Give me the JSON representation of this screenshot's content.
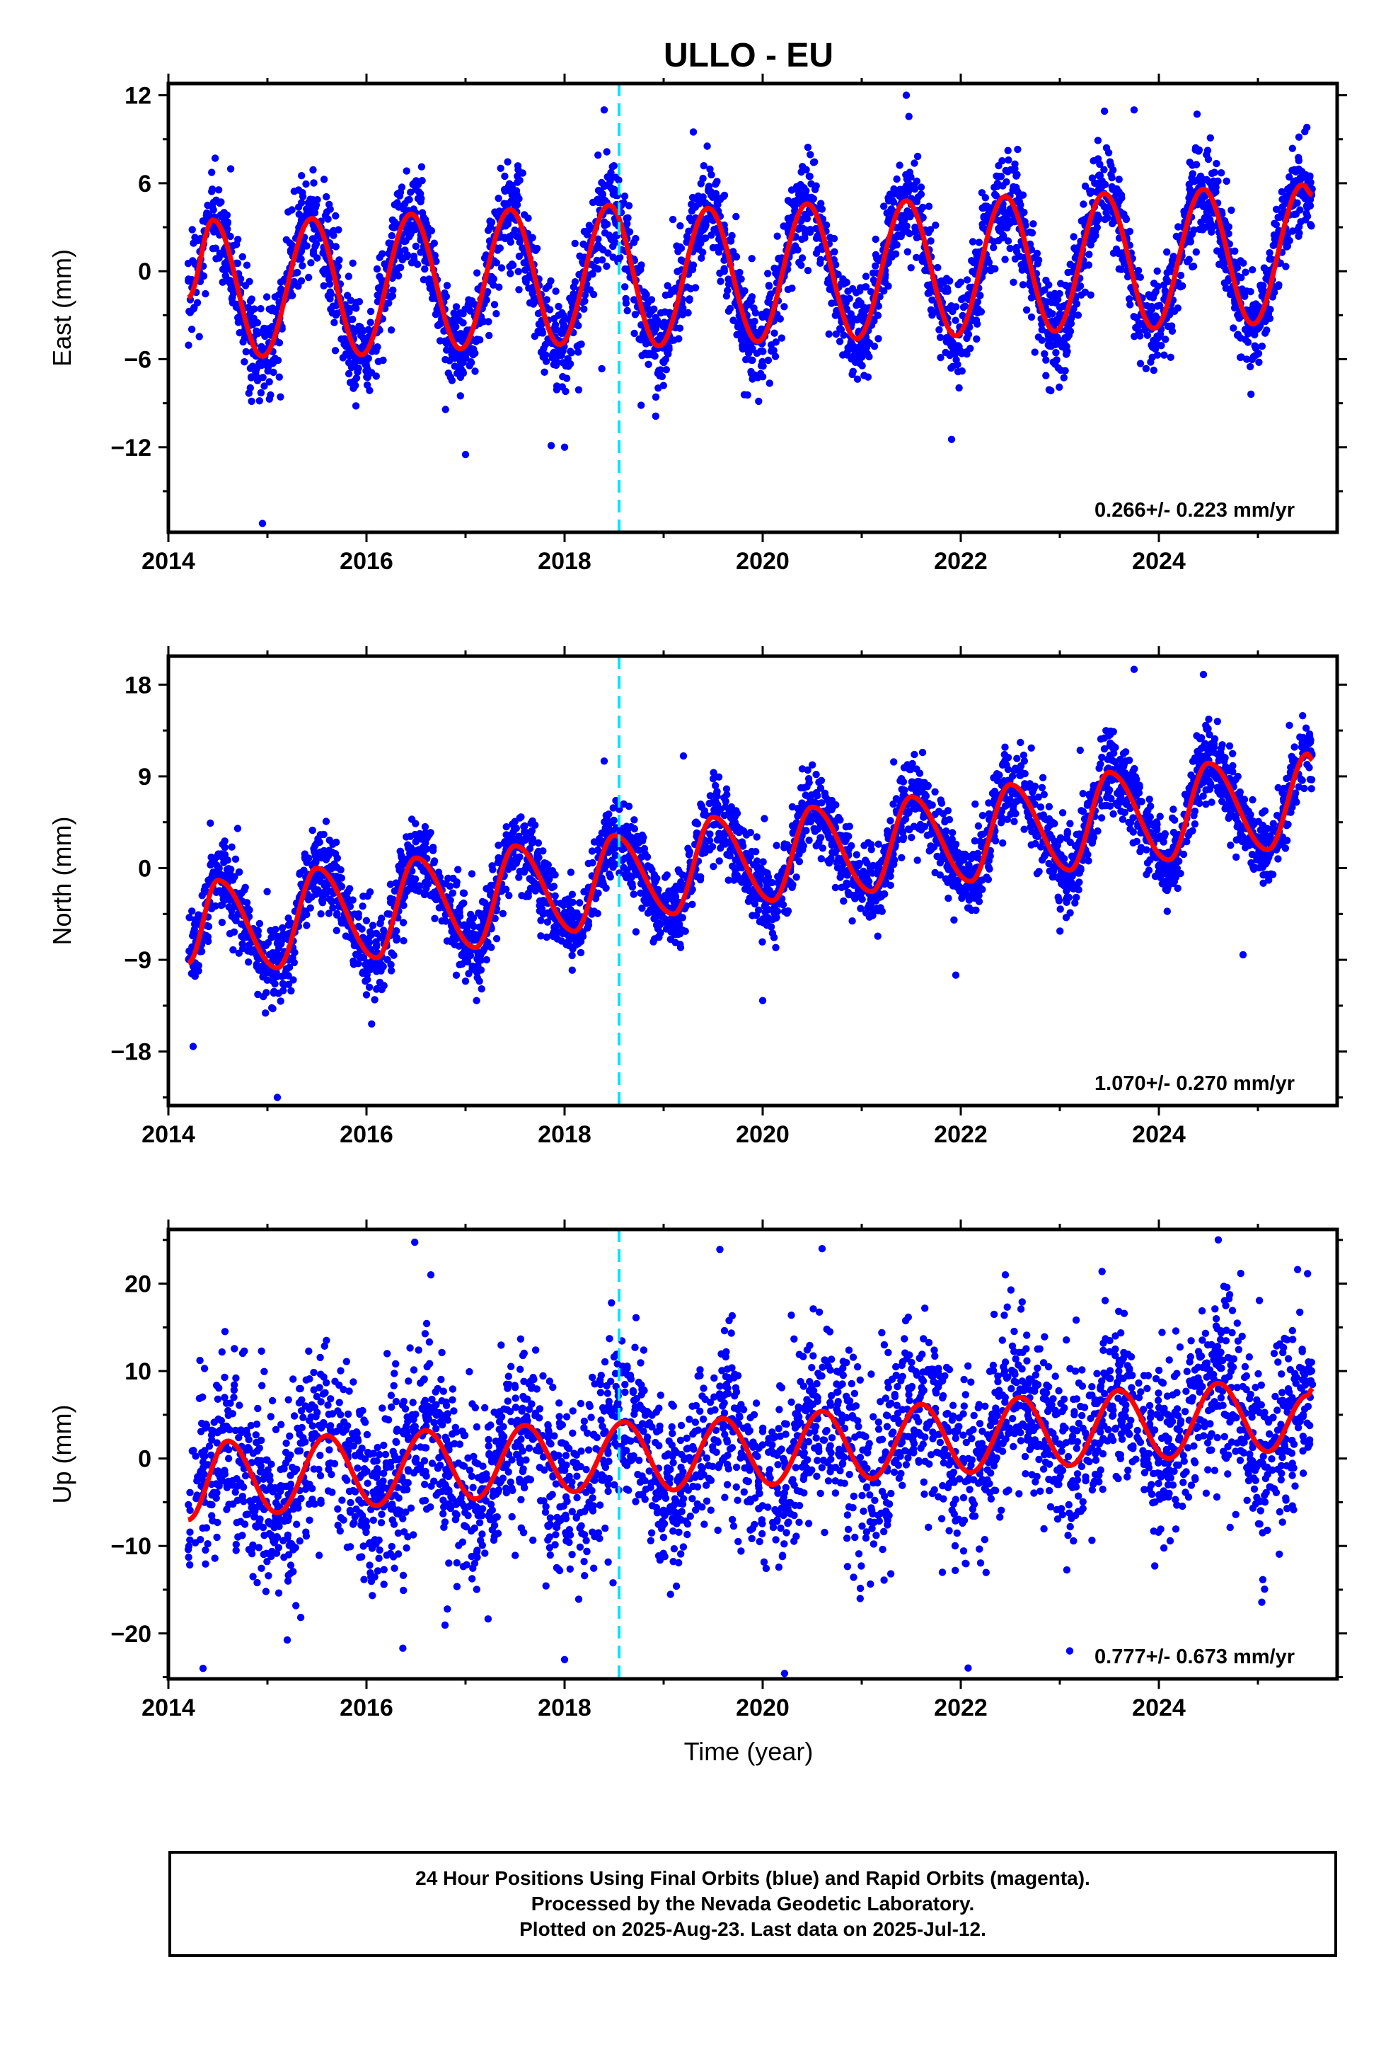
{
  "title": "ULLO - EU",
  "xlabel": "Time (year)",
  "colors": {
    "final_orbits": "#0000ff",
    "model_fit": "#ff0000",
    "offset_marker": "#00e5ff",
    "frame": "#000000"
  },
  "footer": {
    "line1": "24 Hour Positions Using Final Orbits (blue) and Rapid Orbits (magenta).",
    "line2": "Processed by the Nevada Geodetic Laboratory.",
    "line3": "Plotted on 2025-Aug-23. Last data on 2025-Jul-12."
  },
  "chart_data": [
    {
      "type": "scatter",
      "ylabel": "East (mm)",
      "xlim": [
        2014.0,
        2025.8
      ],
      "ylim": [
        -17.8,
        12.8
      ],
      "x_ticks": [
        "2014",
        "2016",
        "2018",
        "2020",
        "2022",
        "2024"
      ],
      "y_ticks": [
        "12",
        "6",
        "0",
        "-6",
        "-12"
      ],
      "rate_text": "0.266+/- 0.223 mm/yr",
      "offset_line_x": 2018.55,
      "data_span": [
        2014.2,
        2025.55
      ],
      "fit": {
        "x": [
          2014.2,
          2014.45,
          2014.95,
          2015.45,
          2015.95,
          2016.45,
          2016.95,
          2017.45,
          2017.95,
          2018.45,
          2018.95,
          2019.45,
          2019.95,
          2020.45,
          2020.95,
          2021.45,
          2021.95,
          2022.45,
          2022.95,
          2023.45,
          2023.95,
          2024.45,
          2024.95,
          2025.45,
          2025.55
        ],
        "y": [
          -1.8,
          3.5,
          -5.8,
          3.6,
          -5.7,
          3.9,
          -5.3,
          4.2,
          -5.0,
          4.5,
          -5.1,
          4.3,
          -4.8,
          4.6,
          -4.6,
          4.8,
          -4.4,
          5.1,
          -4.1,
          5.3,
          -3.9,
          5.6,
          -3.6,
          5.9,
          5.2
        ]
      },
      "observations": {
        "count": 3600,
        "amplitude_mm": 4.6,
        "scatter_sigma_mm": 1.6,
        "outliers": [
          [
            2014.95,
            -17.2
          ],
          [
            2017.0,
            -12.5
          ],
          [
            2018.0,
            -12.0
          ],
          [
            2018.4,
            11.0
          ],
          [
            2019.3,
            9.5
          ],
          [
            2021.45,
            12.0
          ],
          [
            2023.75,
            11.0
          ]
        ]
      }
    },
    {
      "type": "scatter",
      "ylabel": "North (mm)",
      "xlim": [
        2014.0,
        2025.8
      ],
      "ylim": [
        -23.3,
        20.8
      ],
      "x_ticks": [
        "2014",
        "2016",
        "2018",
        "2020",
        "2022",
        "2024"
      ],
      "y_ticks": [
        "18",
        "9",
        "0",
        "-9",
        "-18"
      ],
      "rate_text": "1.070+/- 0.270 mm/yr",
      "offset_line_x": 2018.55,
      "data_span": [
        2014.2,
        2025.55
      ],
      "fit": {
        "x": [
          2014.2,
          2014.5,
          2015.1,
          2015.5,
          2016.1,
          2016.5,
          2017.1,
          2017.5,
          2018.1,
          2018.5,
          2019.1,
          2019.5,
          2020.1,
          2020.5,
          2021.1,
          2021.5,
          2022.1,
          2022.5,
          2023.1,
          2023.5,
          2024.1,
          2024.5,
          2025.1,
          2025.5,
          2025.55
        ],
        "y": [
          -9.3,
          -1.2,
          -9.8,
          0.0,
          -8.8,
          1.0,
          -7.8,
          2.2,
          -6.2,
          3.2,
          -4.5,
          5.0,
          -3.2,
          6.0,
          -2.3,
          7.0,
          -1.3,
          8.2,
          -0.2,
          9.4,
          0.8,
          10.3,
          1.8,
          11.2,
          10.6
        ]
      },
      "observations": {
        "count": 3600,
        "amplitude_mm": 5.0,
        "scatter_sigma_mm": 1.9,
        "outliers": [
          [
            2014.25,
            -17.5
          ],
          [
            2015.1,
            -22.5
          ],
          [
            2018.4,
            10.5
          ],
          [
            2019.2,
            11.0
          ],
          [
            2020.0,
            -13.0
          ],
          [
            2021.95,
            -10.5
          ],
          [
            2023.75,
            19.5
          ],
          [
            2024.45,
            19.0
          ],
          [
            2024.85,
            -8.5
          ]
        ]
      }
    },
    {
      "type": "scatter",
      "ylabel": "Up (mm)",
      "xlim": [
        2014.0,
        2025.8
      ],
      "ylim": [
        -25.2,
        26.2
      ],
      "x_ticks": [
        "2014",
        "2016",
        "2018",
        "2020",
        "2022",
        "2024"
      ],
      "y_ticks": [
        "20",
        "10",
        "0",
        "-10",
        "-20"
      ],
      "rate_text": "0.777+/- 0.673 mm/yr",
      "offset_line_x": 2018.55,
      "data_span": [
        2014.2,
        2025.55
      ],
      "fit": {
        "x": [
          2014.2,
          2014.6,
          2015.1,
          2015.6,
          2016.1,
          2016.6,
          2017.1,
          2017.6,
          2018.1,
          2018.6,
          2019.1,
          2019.6,
          2020.1,
          2020.6,
          2021.1,
          2021.6,
          2022.1,
          2022.6,
          2023.1,
          2023.6,
          2024.1,
          2024.6,
          2025.1,
          2025.5,
          2025.55
        ],
        "y": [
          -7.0,
          2.0,
          -6.2,
          2.6,
          -5.4,
          3.2,
          -4.6,
          3.8,
          -3.8,
          4.2,
          -3.6,
          4.6,
          -3.0,
          5.4,
          -2.3,
          6.2,
          -1.6,
          7.0,
          -0.8,
          7.8,
          0.0,
          8.6,
          0.8,
          7.2,
          8.0
        ]
      },
      "observations": {
        "count": 3300,
        "amplitude_mm": 5.5,
        "scatter_sigma_mm": 5.0,
        "outliers": [
          [
            2014.35,
            -24.0
          ],
          [
            2016.65,
            21.0
          ],
          [
            2018.0,
            -23.0
          ],
          [
            2020.6,
            24.0
          ],
          [
            2022.45,
            21.0
          ],
          [
            2023.1,
            -22.0
          ],
          [
            2024.6,
            25.0
          ]
        ]
      }
    }
  ]
}
